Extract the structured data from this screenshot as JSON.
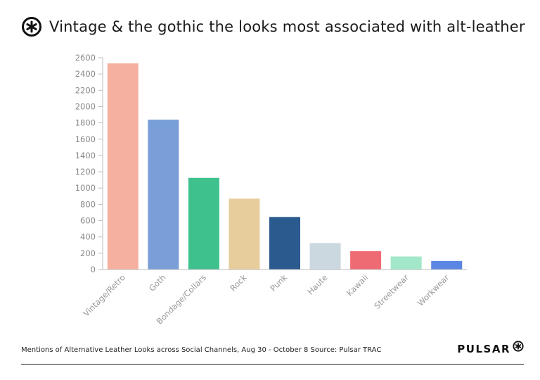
{
  "header": {
    "title": "Vintage & the gothic the looks most associated with alt-leather",
    "logo_icon": "asterisk-circle-icon"
  },
  "footer": {
    "caption": "Mentions of Alternative Leather Looks across Social Channels, Aug 30 - October 8 Source: Pulsar TRAC",
    "brand": "PULSAR",
    "brand_icon": "asterisk-circle-icon"
  },
  "chart_data": {
    "type": "bar",
    "title": "Vintage & the gothic the looks most associated with alt-leather",
    "xlabel": "",
    "ylabel": "",
    "ylim": [
      0,
      2600
    ],
    "yticks": [
      0,
      200,
      400,
      600,
      800,
      1000,
      1200,
      1400,
      1600,
      1800,
      2000,
      2200,
      2400,
      2600
    ],
    "grid": false,
    "legend": "none",
    "categories": [
      "Vintage/Retro",
      "Goth",
      "Bondage/Collars",
      "Rock",
      "Punk",
      "Haute",
      "Kawaii",
      "Streetwear",
      "Workwear"
    ],
    "values": [
      2530,
      1840,
      1125,
      870,
      645,
      325,
      225,
      160,
      105
    ],
    "colors": [
      "#f6b0a0",
      "#7a9fd8",
      "#3fc18e",
      "#e7cd9c",
      "#2b5a8f",
      "#ccd8e0",
      "#ef6b73",
      "#a2e8c8",
      "#5b86e3"
    ]
  }
}
